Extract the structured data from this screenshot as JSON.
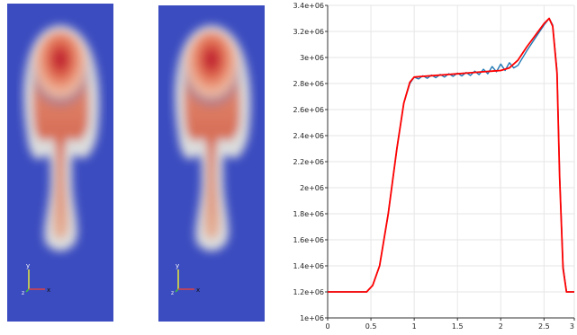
{
  "fields": [
    {
      "id": "left",
      "colormap": {
        "background": "#3b4cc0",
        "mid": "#dcdddd",
        "high": "#b40426"
      },
      "axes_triad": {
        "x_label": "x",
        "y_label": "y",
        "z_label": "z"
      }
    },
    {
      "id": "right",
      "colormap": {
        "background": "#3b4cc0",
        "mid": "#dcdddd",
        "high": "#b40426"
      },
      "axes_triad": {
        "x_label": "x",
        "y_label": "y",
        "z_label": "z"
      }
    }
  ],
  "chart_data": {
    "type": "line",
    "title": "",
    "xlabel": "",
    "ylabel": "",
    "xlim": [
      0,
      2.85
    ],
    "ylim": [
      1000000,
      3400000
    ],
    "grid": true,
    "x_ticks": [
      {
        "value": 0,
        "label": "0"
      },
      {
        "value": 0.5,
        "label": "0.5"
      },
      {
        "value": 1,
        "label": "1"
      },
      {
        "value": 1.5,
        "label": "1.5"
      },
      {
        "value": 2,
        "label": "2"
      },
      {
        "value": 2.5,
        "label": "2.5"
      },
      {
        "value": 2.85,
        "label": "3"
      }
    ],
    "y_ticks": [
      {
        "value": 1000000,
        "label": "1e+06"
      },
      {
        "value": 1200000,
        "label": "1.2e+06"
      },
      {
        "value": 1400000,
        "label": "1.4e+06"
      },
      {
        "value": 1600000,
        "label": "1.6e+06"
      },
      {
        "value": 1800000,
        "label": "1.8e+06"
      },
      {
        "value": 2000000,
        "label": "2e+06"
      },
      {
        "value": 2200000,
        "label": "2.2e+06"
      },
      {
        "value": 2400000,
        "label": "2.4e+06"
      },
      {
        "value": 2600000,
        "label": "2.6e+06"
      },
      {
        "value": 2800000,
        "label": "2.8e+06"
      },
      {
        "value": 3000000,
        "label": "3e+06"
      },
      {
        "value": 3200000,
        "label": "3.2e+06"
      },
      {
        "value": 3400000,
        "label": "3.4e+06"
      }
    ],
    "series": [
      {
        "color": "#1f77b4",
        "x": [
          0,
          0.45,
          0.52,
          0.6,
          0.7,
          0.8,
          0.88,
          0.95,
          1.0,
          1.05,
          1.1,
          1.15,
          1.2,
          1.25,
          1.3,
          1.35,
          1.4,
          1.45,
          1.5,
          1.55,
          1.6,
          1.65,
          1.7,
          1.75,
          1.8,
          1.85,
          1.9,
          1.95,
          2.0,
          2.05,
          2.1,
          2.15,
          2.2,
          2.3,
          2.4,
          2.5,
          2.56,
          2.6,
          2.65,
          2.68,
          2.72,
          2.76,
          2.8,
          2.85
        ],
        "y": [
          1200000,
          1200000,
          1250000,
          1400000,
          1800000,
          2300000,
          2650000,
          2800000,
          2850000,
          2835000,
          2860000,
          2840000,
          2865000,
          2845000,
          2870000,
          2850000,
          2875000,
          2855000,
          2880000,
          2858000,
          2885000,
          2862000,
          2895000,
          2868000,
          2910000,
          2875000,
          2930000,
          2890000,
          2950000,
          2900000,
          2960000,
          2920000,
          2940000,
          3050000,
          3150000,
          3250000,
          3300000,
          3250000,
          2900000,
          2100000,
          1400000,
          1200000,
          1200000,
          1200000
        ]
      },
      {
        "color": "#ff0000",
        "x": [
          0,
          0.45,
          0.52,
          0.6,
          0.7,
          0.8,
          0.88,
          0.95,
          1.0,
          1.1,
          1.2,
          1.4,
          1.6,
          1.8,
          1.9,
          2.0,
          2.1,
          2.2,
          2.3,
          2.4,
          2.5,
          2.56,
          2.6,
          2.65,
          2.68,
          2.72,
          2.76,
          2.8,
          2.85
        ],
        "y": [
          1200000,
          1200000,
          1250000,
          1400000,
          1800000,
          2300000,
          2650000,
          2810000,
          2850000,
          2855000,
          2860000,
          2870000,
          2880000,
          2890000,
          2895000,
          2900000,
          2920000,
          2980000,
          3080000,
          3170000,
          3260000,
          3300000,
          3240000,
          2880000,
          2080000,
          1380000,
          1200000,
          1200000,
          1200000
        ]
      }
    ]
  }
}
